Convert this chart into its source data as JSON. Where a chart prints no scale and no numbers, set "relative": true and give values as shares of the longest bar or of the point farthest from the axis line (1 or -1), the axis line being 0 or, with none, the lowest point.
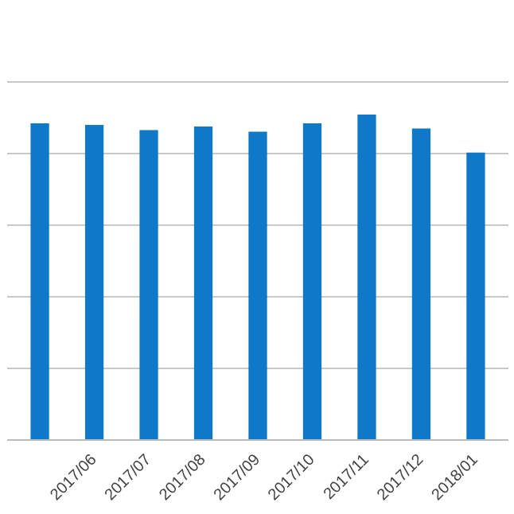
{
  "chart_data": {
    "type": "bar",
    "relative": true,
    "categories": [
      null,
      "2017/06",
      "2017/07",
      "2017/08",
      "2017/09",
      "2017/10",
      "2017/11",
      "2017/12",
      "2018/01"
    ],
    "values": [
      0.973,
      0.968,
      0.952,
      0.963,
      0.947,
      0.973,
      1.0,
      0.957,
      0.883
    ],
    "color": "#0f78c8",
    "grid": "y"
  }
}
